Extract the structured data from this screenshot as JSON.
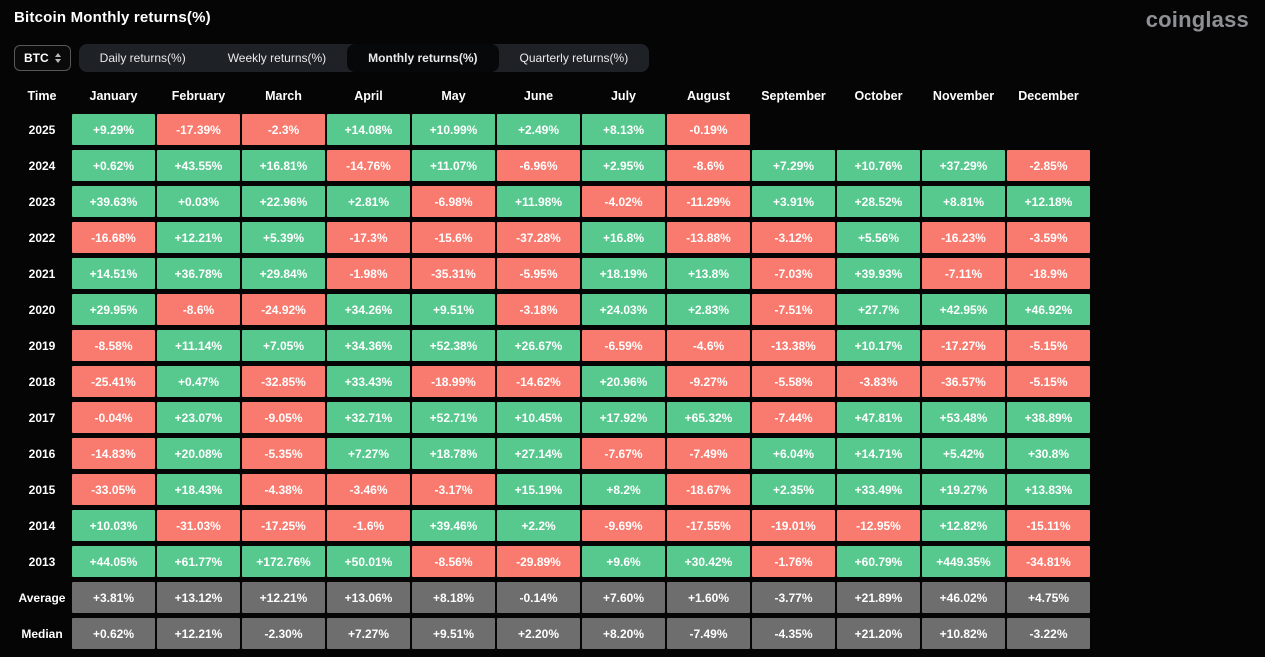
{
  "header": {
    "title": "Bitcoin Monthly returns(%)",
    "logo": "coinglass"
  },
  "controls": {
    "symbol": "BTC",
    "tabs": [
      {
        "label": "Daily returns(%)",
        "active": false
      },
      {
        "label": "Weekly returns(%)",
        "active": false
      },
      {
        "label": "Monthly returns(%)",
        "active": true
      },
      {
        "label": "Quarterly returns(%)",
        "active": false
      }
    ]
  },
  "chart_data": {
    "type": "heatmap",
    "title": "Bitcoin Monthly returns(%)",
    "columns": [
      "Time",
      "January",
      "February",
      "March",
      "April",
      "May",
      "June",
      "July",
      "August",
      "September",
      "October",
      "November",
      "December"
    ],
    "colors": {
      "positive": "#57c98f",
      "negative": "#f97a6e",
      "summary": "#6e6e6e",
      "background": "#050505"
    },
    "rows": [
      {
        "label": "2025",
        "summary": false,
        "values": [
          "+9.29%",
          "-17.39%",
          "-2.3%",
          "+14.08%",
          "+10.99%",
          "+2.49%",
          "+8.13%",
          "-0.19%",
          "",
          "",
          "",
          ""
        ]
      },
      {
        "label": "2024",
        "summary": false,
        "values": [
          "+0.62%",
          "+43.55%",
          "+16.81%",
          "-14.76%",
          "+11.07%",
          "-6.96%",
          "+2.95%",
          "-8.6%",
          "+7.29%",
          "+10.76%",
          "+37.29%",
          "-2.85%"
        ]
      },
      {
        "label": "2023",
        "summary": false,
        "values": [
          "+39.63%",
          "+0.03%",
          "+22.96%",
          "+2.81%",
          "-6.98%",
          "+11.98%",
          "-4.02%",
          "-11.29%",
          "+3.91%",
          "+28.52%",
          "+8.81%",
          "+12.18%"
        ]
      },
      {
        "label": "2022",
        "summary": false,
        "values": [
          "-16.68%",
          "+12.21%",
          "+5.39%",
          "-17.3%",
          "-15.6%",
          "-37.28%",
          "+16.8%",
          "-13.88%",
          "-3.12%",
          "+5.56%",
          "-16.23%",
          "-3.59%"
        ]
      },
      {
        "label": "2021",
        "summary": false,
        "values": [
          "+14.51%",
          "+36.78%",
          "+29.84%",
          "-1.98%",
          "-35.31%",
          "-5.95%",
          "+18.19%",
          "+13.8%",
          "-7.03%",
          "+39.93%",
          "-7.11%",
          "-18.9%"
        ]
      },
      {
        "label": "2020",
        "summary": false,
        "values": [
          "+29.95%",
          "-8.6%",
          "-24.92%",
          "+34.26%",
          "+9.51%",
          "-3.18%",
          "+24.03%",
          "+2.83%",
          "-7.51%",
          "+27.7%",
          "+42.95%",
          "+46.92%"
        ]
      },
      {
        "label": "2019",
        "summary": false,
        "values": [
          "-8.58%",
          "+11.14%",
          "+7.05%",
          "+34.36%",
          "+52.38%",
          "+26.67%",
          "-6.59%",
          "-4.6%",
          "-13.38%",
          "+10.17%",
          "-17.27%",
          "-5.15%"
        ]
      },
      {
        "label": "2018",
        "summary": false,
        "values": [
          "-25.41%",
          "+0.47%",
          "-32.85%",
          "+33.43%",
          "-18.99%",
          "-14.62%",
          "+20.96%",
          "-9.27%",
          "-5.58%",
          "-3.83%",
          "-36.57%",
          "-5.15%"
        ]
      },
      {
        "label": "2017",
        "summary": false,
        "values": [
          "-0.04%",
          "+23.07%",
          "-9.05%",
          "+32.71%",
          "+52.71%",
          "+10.45%",
          "+17.92%",
          "+65.32%",
          "-7.44%",
          "+47.81%",
          "+53.48%",
          "+38.89%"
        ]
      },
      {
        "label": "2016",
        "summary": false,
        "values": [
          "-14.83%",
          "+20.08%",
          "-5.35%",
          "+7.27%",
          "+18.78%",
          "+27.14%",
          "-7.67%",
          "-7.49%",
          "+6.04%",
          "+14.71%",
          "+5.42%",
          "+30.8%"
        ]
      },
      {
        "label": "2015",
        "summary": false,
        "values": [
          "-33.05%",
          "+18.43%",
          "-4.38%",
          "-3.46%",
          "-3.17%",
          "+15.19%",
          "+8.2%",
          "-18.67%",
          "+2.35%",
          "+33.49%",
          "+19.27%",
          "+13.83%"
        ]
      },
      {
        "label": "2014",
        "summary": false,
        "values": [
          "+10.03%",
          "-31.03%",
          "-17.25%",
          "-1.6%",
          "+39.46%",
          "+2.2%",
          "-9.69%",
          "-17.55%",
          "-19.01%",
          "-12.95%",
          "+12.82%",
          "-15.11%"
        ]
      },
      {
        "label": "2013",
        "summary": false,
        "values": [
          "+44.05%",
          "+61.77%",
          "+172.76%",
          "+50.01%",
          "-8.56%",
          "-29.89%",
          "+9.6%",
          "+30.42%",
          "-1.76%",
          "+60.79%",
          "+449.35%",
          "-34.81%"
        ]
      },
      {
        "label": "Average",
        "summary": true,
        "values": [
          "+3.81%",
          "+13.12%",
          "+12.21%",
          "+13.06%",
          "+8.18%",
          "-0.14%",
          "+7.60%",
          "+1.60%",
          "-3.77%",
          "+21.89%",
          "+46.02%",
          "+4.75%"
        ]
      },
      {
        "label": "Median",
        "summary": true,
        "values": [
          "+0.62%",
          "+12.21%",
          "-2.30%",
          "+7.27%",
          "+9.51%",
          "+2.20%",
          "+8.20%",
          "-7.49%",
          "-4.35%",
          "+21.20%",
          "+10.82%",
          "-3.22%"
        ]
      }
    ]
  }
}
